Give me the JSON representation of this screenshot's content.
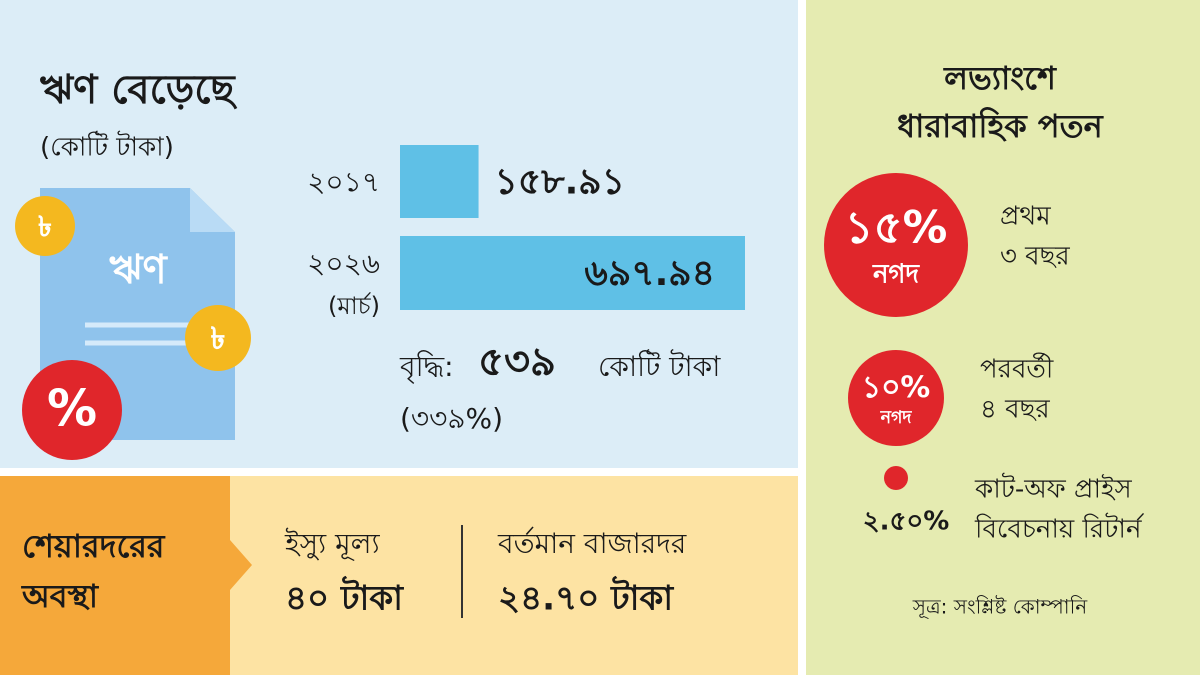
{
  "loan": {
    "title": "ঋণ বেড়েছে",
    "unit": "(কোটি টাকা)",
    "icon": {
      "doc_label": "ঋণ",
      "coin": "৳",
      "badge": "%"
    },
    "bars": [
      {
        "label": "২০১৭",
        "value": 158.91,
        "value_label": "১৫৮.৯১"
      },
      {
        "label": "২০২৬",
        "sublabel": "(মার্চ)",
        "value": 697.94,
        "value_label": "৬৯৭.৯৪"
      }
    ],
    "increase": {
      "prefix": "বৃদ্ধি:",
      "amount": "৫৩৯",
      "unit": "কোটি টাকা",
      "percent": "(৩৩৯%)"
    }
  },
  "share_price": {
    "title_line1": "শেয়ারদরের",
    "title_line2": "অবস্থা",
    "issue": {
      "label": "ইস্যু মূল্য",
      "value": "৪০ টাকা"
    },
    "market": {
      "label": "বর্তমান বাজারদর",
      "value": "২৪.৭০ টাকা"
    }
  },
  "dividend": {
    "title_line1": "লভ্যাংশে",
    "title_line2": "ধারাবাহিক পতন",
    "items": [
      {
        "value": 15,
        "value_label": "১৫%",
        "kind": "নগদ",
        "desc_line1": "প্রথম",
        "desc_line2": "৩ বছর"
      },
      {
        "value": 10,
        "value_label": "১০%",
        "kind": "নগদ",
        "desc_line1": "পরবর্তী",
        "desc_line2": "৪ বছর"
      },
      {
        "value": 2.5,
        "value_label": "২.৫০%",
        "desc_line1": "কাট-অফ প্রাইস",
        "desc_line2": "বিবেচনায় রিটার্ন"
      }
    ],
    "source": "সূত্র: সংশ্লিষ্ট কোম্পানি"
  }
}
